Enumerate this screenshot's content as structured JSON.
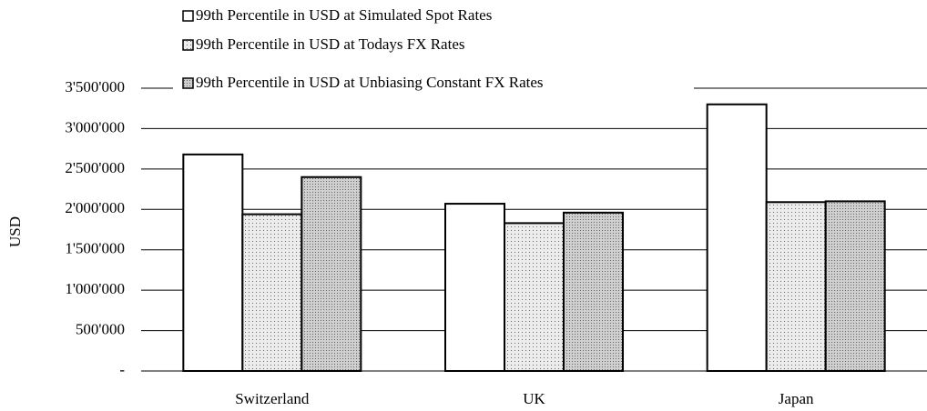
{
  "chart_data": {
    "type": "bar",
    "y_label": "USD",
    "categories": [
      "Switzerland",
      "UK",
      "Japan"
    ],
    "series": [
      {
        "name": "99th Percentile in USD at Simulated Spot Rates",
        "color": "#ffffff",
        "values": [
          2680000,
          2070000,
          3300000
        ]
      },
      {
        "name": "99th Percentile in USD at Todays FX Rates",
        "color": "#ececec",
        "values": [
          1940000,
          1830000,
          2090000
        ]
      },
      {
        "name": "99th Percentile in USD at Unbiasing Constant FX Rates",
        "color": "#cfcfcf",
        "values": [
          2400000,
          1960000,
          2100000
        ]
      }
    ],
    "ylim": [
      0,
      3500000
    ],
    "yticks": [
      {
        "value": 0,
        "label": "-"
      },
      {
        "value": 500000,
        "label": "500'000"
      },
      {
        "value": 1000000,
        "label": "1'000'000"
      },
      {
        "value": 1500000,
        "label": "1'500'000"
      },
      {
        "value": 2000000,
        "label": "2'000'000"
      },
      {
        "value": 2500000,
        "label": "2'500'000"
      },
      {
        "value": 3000000,
        "label": "3'000'000"
      },
      {
        "value": 3500000,
        "label": "3'500'000"
      }
    ],
    "grid": true
  }
}
